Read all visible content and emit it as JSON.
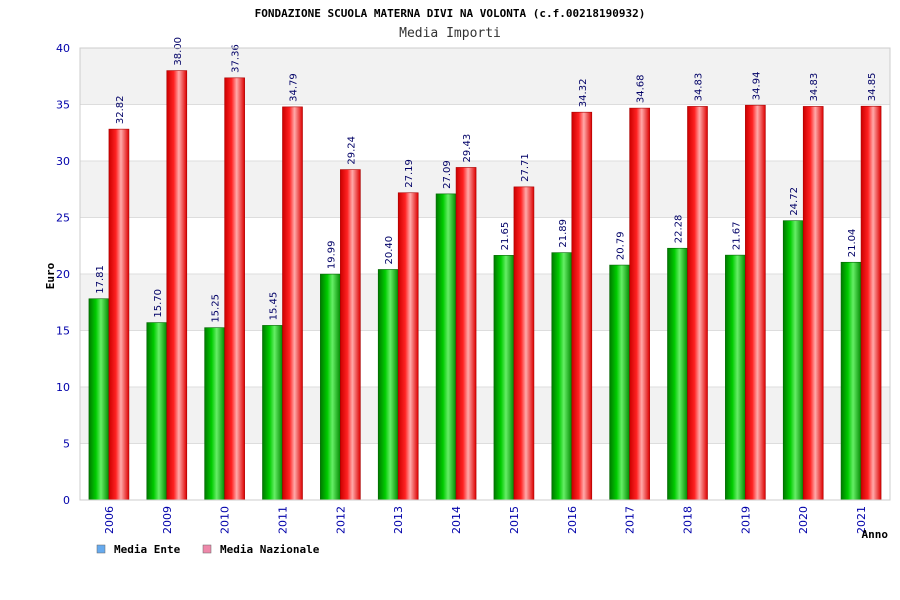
{
  "chart_data": {
    "type": "bar",
    "title": "FONDAZIONE SCUOLA MATERNA DIVI NA VOLONTA (c.f.00218190932)",
    "subtitle": "Media Importi",
    "xlabel": "Anno",
    "ylabel": "Euro",
    "ylim": [
      0,
      40
    ],
    "yticks": [
      "0",
      "5",
      "10",
      "15",
      "20",
      "25",
      "30",
      "35",
      "40"
    ],
    "grid": true,
    "legend_position": "bottom-left",
    "categories": [
      "2006",
      "2009",
      "2010",
      "2011",
      "2012",
      "2013",
      "2014",
      "2015",
      "2016",
      "2017",
      "2018",
      "2019",
      "2020",
      "2021"
    ],
    "series": [
      {
        "name": "Media Ente",
        "color": "#00cc00",
        "legend_color": "#66aaee",
        "values": [
          17.81,
          15.7,
          15.25,
          15.45,
          19.99,
          20.4,
          27.09,
          21.65,
          21.89,
          20.79,
          22.28,
          21.67,
          24.72,
          21.04
        ],
        "labels": [
          "17.81",
          "15.70",
          "15.25",
          "15.45",
          "19.99",
          "20.40",
          "27.09",
          "21.65",
          "21.89",
          "20.79",
          "22.28",
          "21.67",
          "24.72",
          "21.04"
        ]
      },
      {
        "name": "Media Nazionale",
        "color": "#ee0000",
        "legend_color": "#ee88aa",
        "values": [
          32.82,
          38.0,
          37.36,
          34.79,
          29.24,
          27.19,
          29.43,
          27.71,
          34.32,
          34.68,
          34.83,
          34.94,
          34.83,
          34.85
        ],
        "labels": [
          "32.82",
          "38.00",
          "37.36",
          "34.79",
          "29.24",
          "27.19",
          "29.43",
          "27.71",
          "34.32",
          "34.68",
          "34.83",
          "34.94",
          "34.83",
          "34.85"
        ]
      }
    ]
  }
}
